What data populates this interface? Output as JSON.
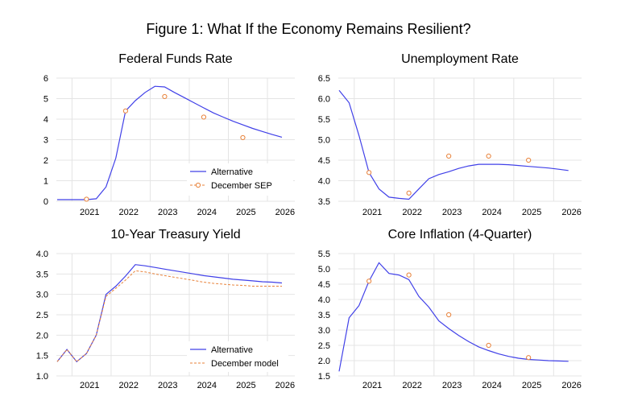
{
  "figure_title": "Figure 1: What If the Economy Remains Resilient?",
  "colors": {
    "alternative": "#4040e8",
    "december": "#e8823a"
  },
  "chart_data": [
    {
      "type": "line",
      "title": "Federal Funds Rate",
      "xlabel": "",
      "ylabel": "",
      "xlim": [
        2020.6,
        2026.7
      ],
      "ylim": [
        0,
        6
      ],
      "yticks": [
        0,
        1,
        2,
        3,
        4,
        5,
        6
      ],
      "ytick_labels": [
        "0",
        "1",
        "2",
        "3",
        "4",
        "5",
        "6"
      ],
      "xticks": [
        2021,
        2022,
        2023,
        2024,
        2025,
        2026
      ],
      "grid": true,
      "legend_position": "bottom-right",
      "series": [
        {
          "name": "Alternative",
          "style": "line",
          "x": [
            2020.62,
            2020.87,
            2021.12,
            2021.37,
            2021.62,
            2021.87,
            2022.12,
            2022.37,
            2022.62,
            2022.87,
            2023.12,
            2023.37,
            2023.62,
            2023.87,
            2024.12,
            2024.37,
            2024.62,
            2024.87,
            2025.12,
            2025.37,
            2025.62,
            2025.87,
            2026.12,
            2026.37
          ],
          "y": [
            0.08,
            0.08,
            0.08,
            0.08,
            0.12,
            0.7,
            2.1,
            4.4,
            4.9,
            5.3,
            5.6,
            5.57,
            5.3,
            5.05,
            4.8,
            4.55,
            4.3,
            4.1,
            3.9,
            3.72,
            3.55,
            3.4,
            3.25,
            3.12
          ]
        },
        {
          "name": "December SEP",
          "style": "dashed-marker",
          "x": [
            2021.37,
            2022.37,
            2023.37,
            2024.37,
            2025.37
          ],
          "y": [
            0.1,
            4.4,
            5.1,
            4.1,
            3.1
          ]
        }
      ]
    },
    {
      "type": "line",
      "title": "Unemployment Rate",
      "xlabel": "",
      "ylabel": "",
      "xlim": [
        2020.6,
        2026.7
      ],
      "ylim": [
        3.5,
        6.5
      ],
      "yticks": [
        3.5,
        4.0,
        4.5,
        5.0,
        5.5,
        6.0,
        6.5
      ],
      "ytick_labels": [
        "3.5",
        "4.0",
        "4.5",
        "5.0",
        "5.5",
        "6.0",
        "6.5"
      ],
      "xticks": [
        2021,
        2022,
        2023,
        2024,
        2025,
        2026
      ],
      "grid": true,
      "series": [
        {
          "name": "",
          "style": "line",
          "x": [
            2020.62,
            2020.87,
            2021.12,
            2021.37,
            2021.62,
            2021.87,
            2022.12,
            2022.37,
            2022.62,
            2022.87,
            2023.12,
            2023.37,
            2023.62,
            2023.87,
            2024.12,
            2024.37,
            2024.62,
            2024.87,
            2025.12,
            2025.37,
            2025.62,
            2025.87,
            2026.12,
            2026.37
          ],
          "y": [
            6.2,
            5.9,
            5.1,
            4.2,
            3.8,
            3.6,
            3.57,
            3.55,
            3.8,
            4.05,
            4.15,
            4.22,
            4.3,
            4.36,
            4.4,
            4.4,
            4.4,
            4.39,
            4.37,
            4.35,
            4.33,
            4.31,
            4.28,
            4.25
          ]
        },
        {
          "name": "",
          "style": "dashed-marker",
          "x": [
            2021.37,
            2022.37,
            2023.37,
            2024.37,
            2025.37
          ],
          "y": [
            4.2,
            3.7,
            4.6,
            4.6,
            4.5
          ]
        }
      ]
    },
    {
      "type": "line",
      "title": "10-Year Treasury Yield",
      "xlabel": "",
      "ylabel": "",
      "xlim": [
        2020.6,
        2026.7
      ],
      "ylim": [
        1.0,
        4.0
      ],
      "yticks": [
        1.0,
        1.5,
        2.0,
        2.5,
        3.0,
        3.5,
        4.0
      ],
      "ytick_labels": [
        "1.0",
        "1.5",
        "2.0",
        "2.5",
        "3.0",
        "3.5",
        "4.0"
      ],
      "xticks": [
        2021,
        2022,
        2023,
        2024,
        2025,
        2026
      ],
      "grid": true,
      "legend_position": "bottom-right",
      "series": [
        {
          "name": "Alternative",
          "style": "line",
          "x": [
            2020.62,
            2020.87,
            2021.12,
            2021.37,
            2021.62,
            2021.87,
            2022.12,
            2022.37,
            2022.62,
            2022.87,
            2023.12,
            2023.37,
            2023.62,
            2023.87,
            2024.12,
            2024.37,
            2024.62,
            2024.87,
            2025.12,
            2025.37,
            2025.62,
            2025.87,
            2026.12,
            2026.37
          ],
          "y": [
            1.35,
            1.65,
            1.35,
            1.55,
            2.0,
            3.0,
            3.2,
            3.45,
            3.73,
            3.7,
            3.66,
            3.62,
            3.58,
            3.54,
            3.5,
            3.46,
            3.43,
            3.4,
            3.37,
            3.35,
            3.33,
            3.31,
            3.3,
            3.28
          ]
        },
        {
          "name": "December model",
          "style": "dashed",
          "x": [
            2020.62,
            2020.87,
            2021.12,
            2021.37,
            2021.62,
            2021.87,
            2022.12,
            2022.37,
            2022.62,
            2022.87,
            2023.12,
            2023.37,
            2023.62,
            2023.87,
            2024.12,
            2024.37,
            2024.62,
            2024.87,
            2025.12,
            2025.37,
            2025.62,
            2025.87,
            2026.12,
            2026.37
          ],
          "y": [
            1.35,
            1.65,
            1.35,
            1.55,
            2.0,
            2.95,
            3.15,
            3.35,
            3.58,
            3.55,
            3.5,
            3.46,
            3.42,
            3.38,
            3.34,
            3.3,
            3.27,
            3.25,
            3.23,
            3.22,
            3.2,
            3.2,
            3.2,
            3.2
          ]
        }
      ]
    },
    {
      "type": "line",
      "title": "Core Inflation (4-Quarter)",
      "xlabel": "",
      "ylabel": "",
      "xlim": [
        2020.6,
        2026.7
      ],
      "ylim": [
        1.5,
        5.5
      ],
      "yticks": [
        1.5,
        2.0,
        2.5,
        3.0,
        3.5,
        4.0,
        4.5,
        5.0,
        5.5
      ],
      "ytick_labels": [
        "1.5",
        "2.0",
        "2.5",
        "3.0",
        "3.5",
        "4.0",
        "4.5",
        "5.0",
        "5.5"
      ],
      "xticks": [
        2021,
        2022,
        2023,
        2024,
        2025,
        2026
      ],
      "grid": true,
      "series": [
        {
          "name": "",
          "style": "line",
          "x": [
            2020.62,
            2020.87,
            2021.12,
            2021.37,
            2021.62,
            2021.87,
            2022.12,
            2022.37,
            2022.62,
            2022.87,
            2023.12,
            2023.37,
            2023.62,
            2023.87,
            2024.12,
            2024.37,
            2024.62,
            2024.87,
            2025.12,
            2025.37,
            2025.62,
            2025.87,
            2026.12,
            2026.37
          ],
          "y": [
            1.65,
            3.4,
            3.8,
            4.6,
            5.2,
            4.85,
            4.8,
            4.65,
            4.1,
            3.75,
            3.3,
            3.05,
            2.82,
            2.62,
            2.45,
            2.33,
            2.22,
            2.14,
            2.08,
            2.04,
            2.02,
            2.0,
            1.99,
            1.98
          ]
        },
        {
          "name": "",
          "style": "dashed-marker",
          "x": [
            2021.37,
            2022.37,
            2023.37,
            2024.37,
            2025.37
          ],
          "y": [
            4.6,
            4.8,
            3.5,
            2.5,
            2.1
          ]
        }
      ]
    }
  ]
}
